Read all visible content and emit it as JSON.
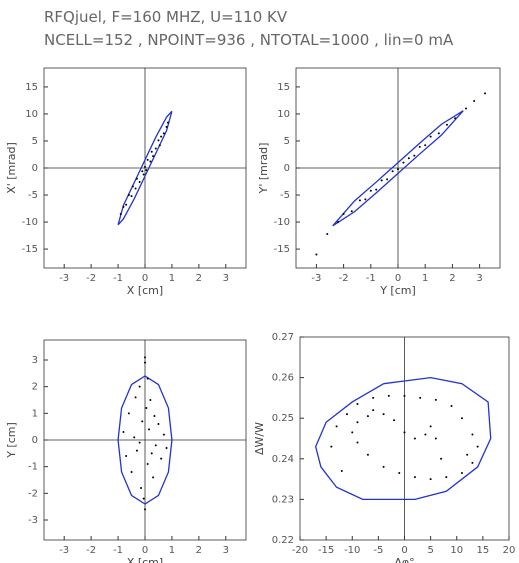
{
  "header": {
    "line1": "RFQjuel, F=160 MHZ, U=110 KV",
    "line2": "NCELL=152 , NPOINT=936 , NTOTAL=1000 , lin=0 mA"
  },
  "chart_data": [
    {
      "type": "scatter",
      "xlabel": "X [cm]",
      "ylabel": "X' [mrad]",
      "xlim": [
        -3.75,
        3.75
      ],
      "ylim": [
        -18.5,
        18.5
      ],
      "xticks": [
        -3,
        -2,
        -1,
        0,
        1,
        2,
        3
      ],
      "yticks": [
        -15,
        -10,
        -5,
        0,
        5,
        10,
        15
      ],
      "zero_lines": [
        "x",
        "y"
      ],
      "series": [
        {
          "mode": "line",
          "color": "#2233cc",
          "x": [
            1.0,
            0.8,
            0.4,
            0,
            -0.4,
            -0.8,
            -1.0,
            -0.8,
            -0.4,
            0,
            0.4,
            0.8,
            1.0
          ],
          "y": [
            10.5,
            6.9,
            2.7,
            -1.5,
            -5.7,
            -9.4,
            -10.5,
            -6.9,
            -2.7,
            1.5,
            5.7,
            9.4,
            10.5
          ]
        },
        {
          "mode": "points",
          "color": "#000000",
          "x": [
            -0.9,
            -0.8,
            -0.7,
            -0.6,
            -0.5,
            -0.45,
            -0.35,
            -0.3,
            -0.2,
            -0.1,
            -0.05,
            0,
            0.05,
            0.1,
            0.2,
            0.25,
            0.3,
            0.4,
            0.5,
            0.55,
            0.6,
            0.7,
            0.8,
            0.85
          ],
          "y": [
            -8.5,
            -7.2,
            -6.8,
            -5.0,
            -5.2,
            -3.4,
            -3.8,
            -2.0,
            -2.6,
            -0.6,
            -1.2,
            0.2,
            -0.4,
            1.5,
            1.2,
            3.0,
            2.2,
            3.6,
            5.1,
            4.2,
            5.8,
            6.4,
            7.6,
            8.4
          ]
        }
      ]
    },
    {
      "type": "scatter",
      "xlabel": "Y [cm]",
      "ylabel": "Y' [mrad]",
      "xlim": [
        -3.75,
        3.75
      ],
      "ylim": [
        -18.5,
        18.5
      ],
      "xticks": [
        -3,
        -2,
        -1,
        0,
        1,
        2,
        3
      ],
      "yticks": [
        -15,
        -10,
        -5,
        0,
        5,
        10,
        15
      ],
      "zero_lines": [
        "x",
        "y"
      ],
      "series": [
        {
          "mode": "line",
          "color": "#2233cc",
          "x": [
            2.4,
            1.6,
            0.8,
            0,
            -0.8,
            -1.6,
            -2.4,
            -1.6,
            -0.8,
            0,
            0.8,
            1.6,
            2.4
          ],
          "y": [
            10.6,
            6.1,
            2.6,
            -1.0,
            -4.6,
            -8.1,
            -10.7,
            -6.1,
            -2.6,
            1.0,
            4.6,
            8.1,
            10.6
          ]
        },
        {
          "mode": "points",
          "color": "#000000",
          "x": [
            -3.0,
            -2.6,
            -2.2,
            -2.0,
            -1.7,
            -1.4,
            -1.2,
            -1.0,
            -0.8,
            -0.6,
            -0.4,
            -0.2,
            0,
            0.2,
            0.4,
            0.6,
            0.8,
            1.0,
            1.2,
            1.5,
            1.8,
            2.1,
            2.5,
            2.8,
            3.2
          ],
          "y": [
            -16.0,
            -12.2,
            -10.0,
            -8.5,
            -8.0,
            -6.0,
            -5.8,
            -4.2,
            -4.0,
            -2.3,
            -2.1,
            -0.6,
            -0.2,
            1.0,
            1.8,
            2.3,
            3.9,
            4.2,
            5.8,
            6.4,
            8.0,
            9.2,
            11.0,
            12.4,
            13.8
          ]
        }
      ]
    },
    {
      "type": "scatter",
      "xlabel": "X [cm]",
      "ylabel": "Y [cm]",
      "xlim": [
        -3.75,
        3.75
      ],
      "ylim": [
        -3.75,
        3.75
      ],
      "xticks": [
        -3,
        -2,
        -1,
        0,
        1,
        2,
        3
      ],
      "yticks": [
        -3,
        -2,
        -1,
        0,
        1,
        2,
        3
      ],
      "zero_lines": [
        "x",
        "y"
      ],
      "series": [
        {
          "mode": "line",
          "color": "#2233cc",
          "x": [
            1.0,
            0.87,
            0.5,
            0,
            -0.5,
            -0.87,
            -1.0,
            -0.87,
            -0.5,
            0,
            0.5,
            0.87,
            1.0
          ],
          "y": [
            0,
            1.2,
            2.08,
            2.4,
            2.08,
            1.2,
            0,
            -1.2,
            -2.08,
            -2.4,
            -2.08,
            -1.2,
            0
          ]
        },
        {
          "mode": "points",
          "color": "#000000",
          "x": [
            -0.8,
            -0.7,
            -0.6,
            -0.5,
            -0.4,
            -0.35,
            -0.3,
            -0.2,
            -0.15,
            -0.1,
            0,
            0,
            0.05,
            0.1,
            0.15,
            0.2,
            0.3,
            0.35,
            0.4,
            0.5,
            0.6,
            0.7,
            0.8,
            -0.05,
            0.1,
            -0.2,
            0.25,
            0.0
          ],
          "y": [
            0.3,
            -0.6,
            1.0,
            -1.2,
            0.1,
            1.6,
            -0.4,
            2.0,
            -1.8,
            0.7,
            2.9,
            -2.6,
            1.2,
            -0.9,
            0.4,
            1.5,
            -1.4,
            0.9,
            -0.2,
            0.6,
            -0.7,
            0.2,
            -0.3,
            -2.2,
            2.3,
            -0.1,
            -0.5,
            3.1
          ]
        }
      ]
    },
    {
      "type": "scatter",
      "xlabel": "Δφ°",
      "ylabel": "ΔW/W",
      "xlim": [
        -20,
        20
      ],
      "ylim": [
        0.22,
        0.27
      ],
      "xticks": [
        -20,
        -15,
        -10,
        -5,
        0,
        5,
        10,
        15,
        20
      ],
      "yticks": [
        0.22,
        0.23,
        0.24,
        0.25,
        0.26,
        0.27
      ],
      "zero_lines": [
        "x"
      ],
      "series": [
        {
          "mode": "line",
          "color": "#2233cc",
          "x": [
            -4,
            5,
            11,
            16,
            16.5,
            14,
            8,
            2,
            -8,
            -13,
            -16,
            -17,
            -15,
            -10,
            -4
          ],
          "y": [
            0.2585,
            0.26,
            0.2585,
            0.254,
            0.245,
            0.238,
            0.232,
            0.23,
            0.23,
            0.233,
            0.238,
            0.243,
            0.249,
            0.254,
            0.2585
          ]
        },
        {
          "mode": "points",
          "color": "#000000",
          "x": [
            -14,
            -13,
            -11,
            -9,
            -6,
            -3,
            0,
            3,
            6,
            9,
            11,
            13,
            14,
            13,
            11,
            8,
            5,
            2,
            -1,
            -4,
            -7,
            -9,
            -10,
            -9,
            -7,
            -4,
            -2,
            0,
            2,
            4,
            5,
            6,
            -12,
            12,
            7,
            -6
          ],
          "y": [
            0.243,
            0.248,
            0.251,
            0.2535,
            0.255,
            0.2555,
            0.2555,
            0.255,
            0.2545,
            0.253,
            0.25,
            0.246,
            0.243,
            0.239,
            0.2365,
            0.2355,
            0.235,
            0.2355,
            0.2365,
            0.238,
            0.241,
            0.244,
            0.2465,
            0.249,
            0.2505,
            0.251,
            0.2495,
            0.2465,
            0.245,
            0.246,
            0.248,
            0.245,
            0.237,
            0.241,
            0.24,
            0.252
          ]
        }
      ]
    }
  ]
}
